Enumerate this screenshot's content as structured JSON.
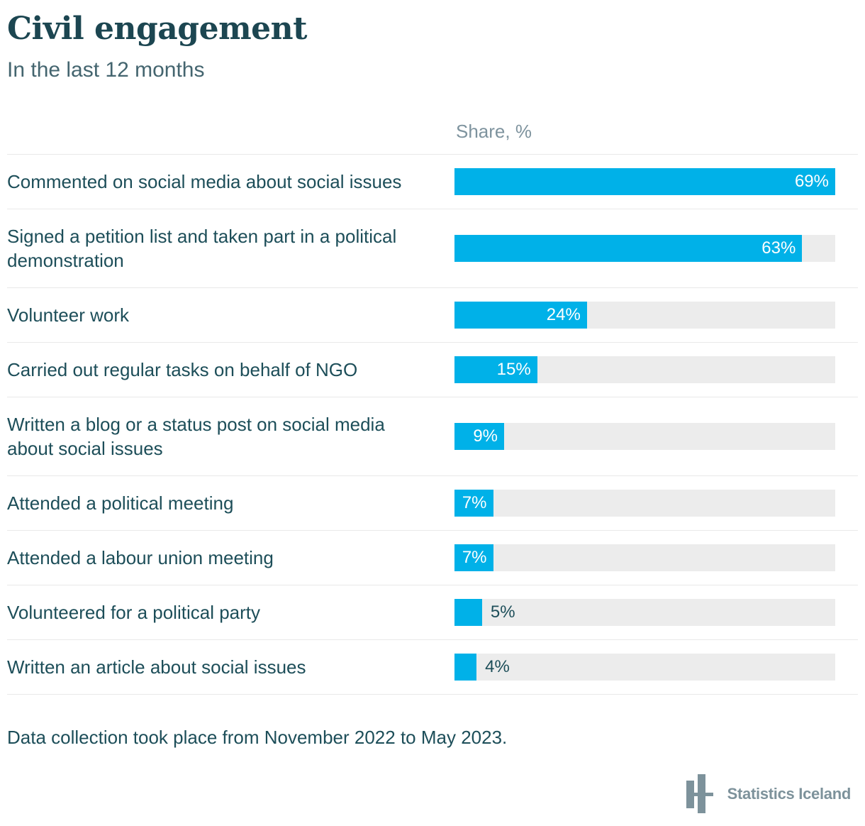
{
  "header": {
    "title": "Civil engagement",
    "subtitle": "In the last 12 months"
  },
  "chart_data": {
    "type": "bar",
    "orientation": "horizontal",
    "value_column_header": "Share, %",
    "categories": [
      "Commented on social media about social issues",
      "Signed a petition list and taken part in a political demonstration",
      "Volunteer work",
      "Carried out regular tasks on behalf of NGO",
      "Written a blog or a status post on social media about social issues",
      "Attended a political meeting",
      "Attended a labour union meeting",
      "Volunteered for a political party",
      "Written an article about social issues"
    ],
    "values": [
      69,
      63,
      24,
      15,
      9,
      7,
      7,
      5,
      4
    ],
    "value_labels": [
      "69%",
      "63%",
      "24%",
      "15%",
      "9%",
      "7%",
      "7%",
      "5%",
      "4%"
    ],
    "xlim": [
      0,
      69
    ],
    "unit": "%",
    "bar_color": "#00b1e8",
    "track_color": "#ececec",
    "grid": false,
    "legend": false
  },
  "footer": {
    "note": "Data collection took place from November 2022 to May 2023.",
    "brand": "Statistics Iceland"
  },
  "colors": {
    "title": "#1c4651",
    "text": "#1d4e59",
    "subtitle": "#44656f",
    "muted": "#7e939e",
    "accent": "#00b1e8",
    "track": "#ececec",
    "divider": "#e9e9e9"
  }
}
